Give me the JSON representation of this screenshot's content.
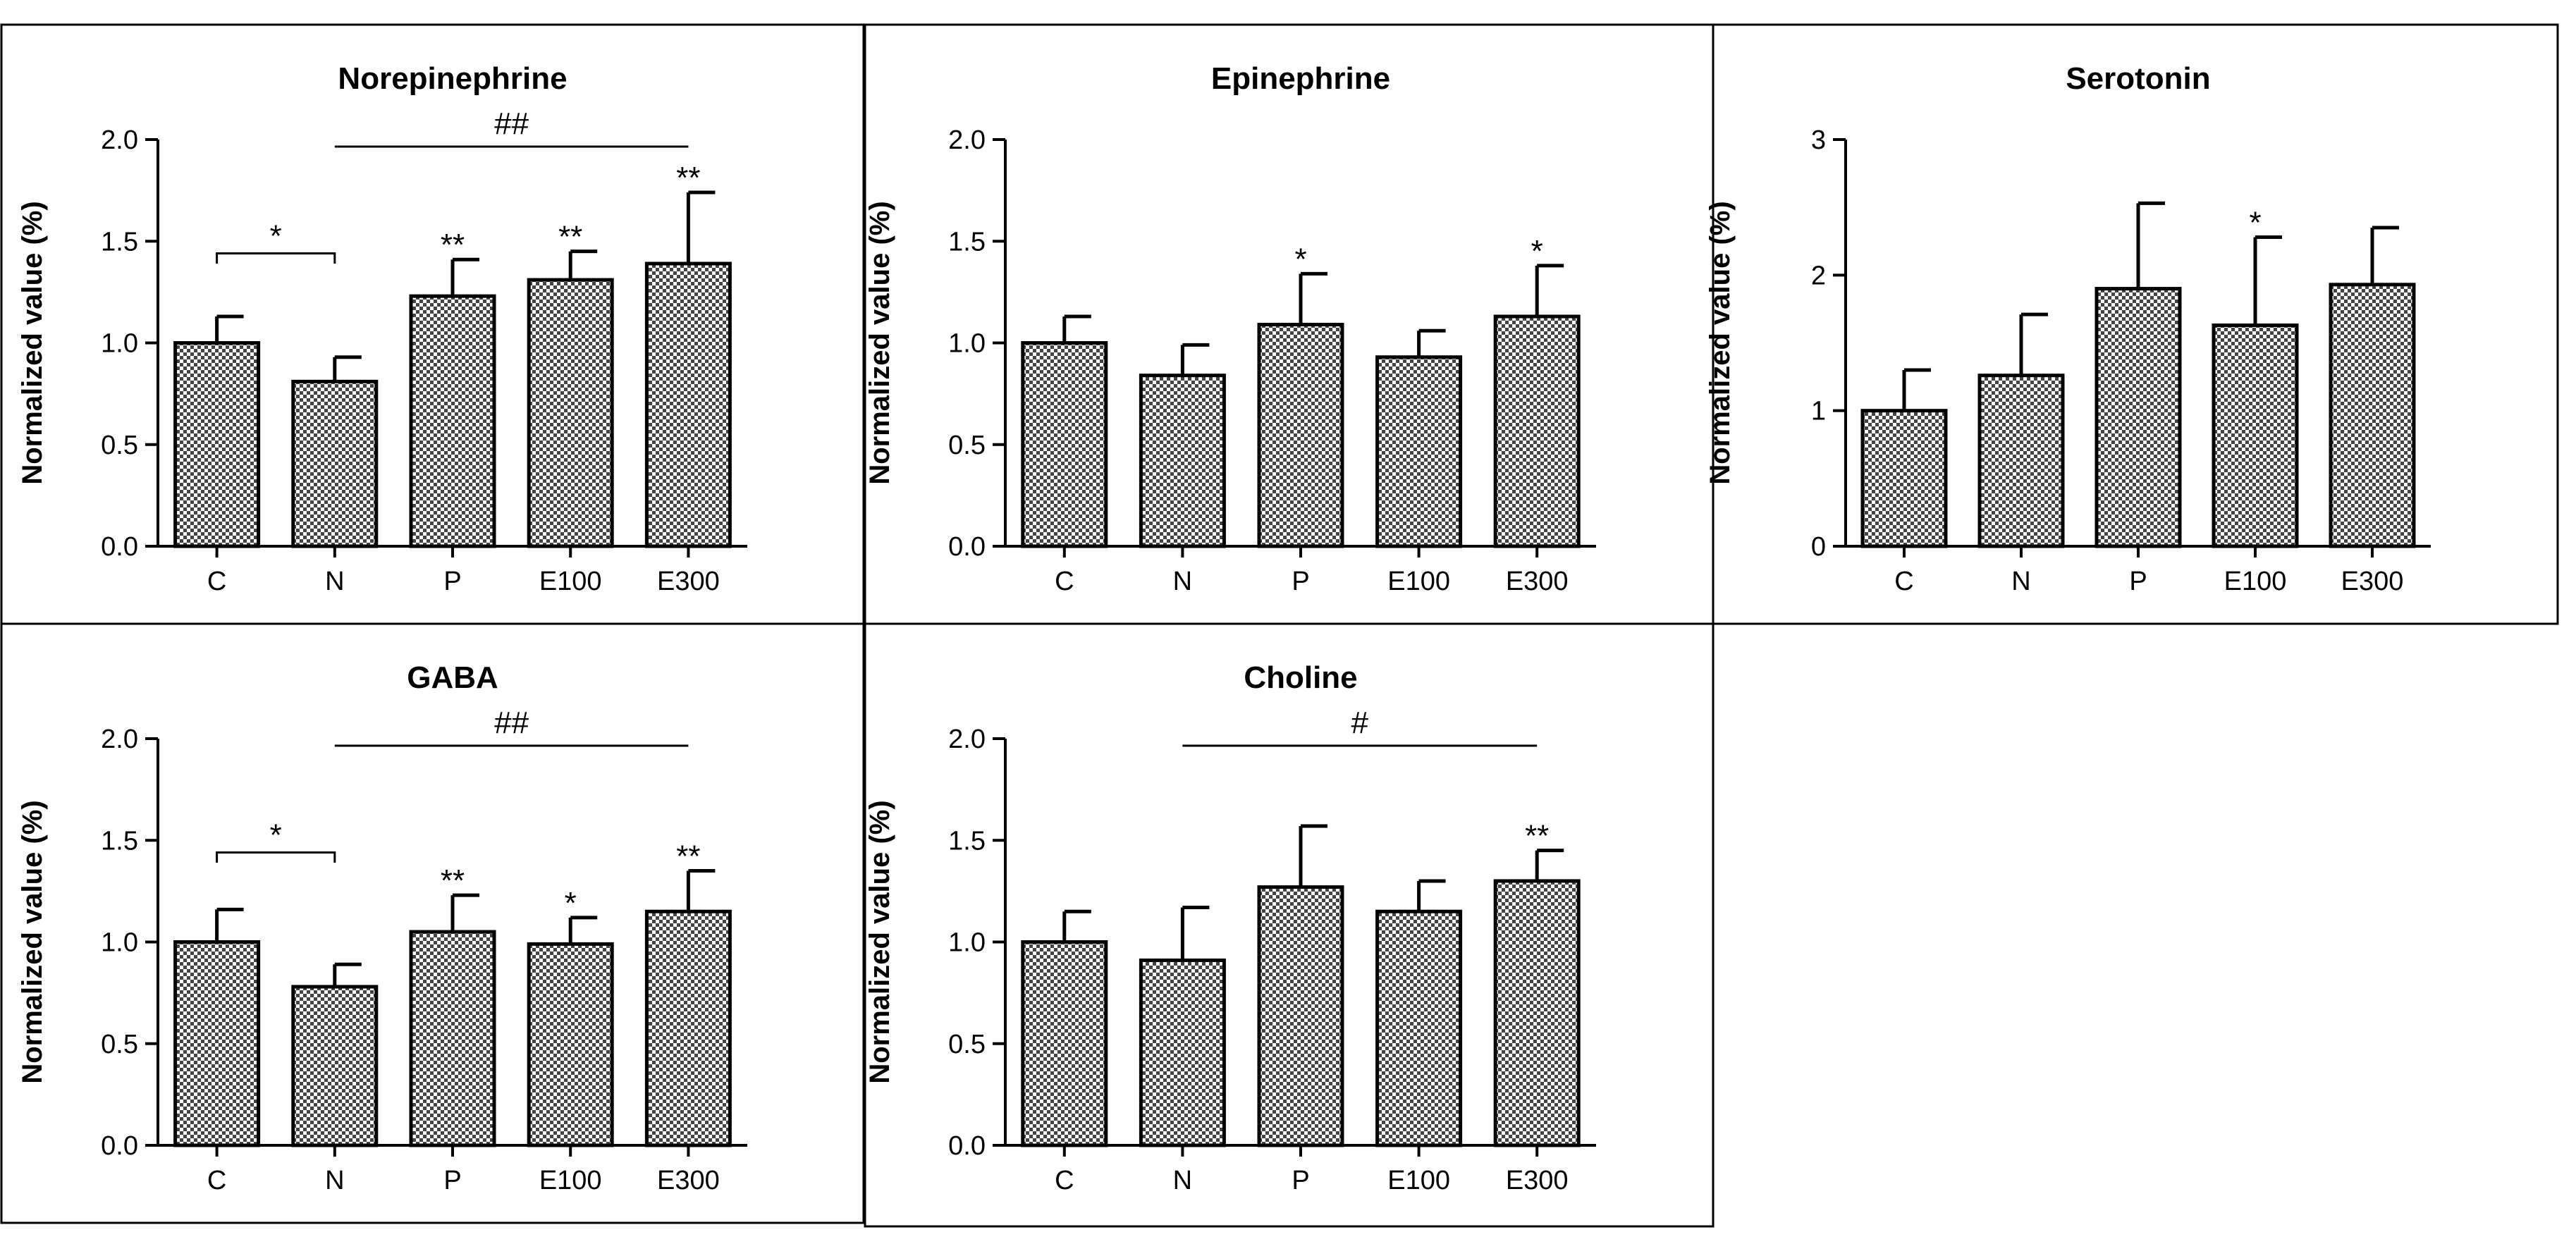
{
  "chart_data": [
    {
      "type": "bar",
      "title": "Norepinephrine",
      "ylabel": "Normalized value (%)",
      "xlabel": "",
      "categories": [
        "C",
        "N",
        "P",
        "E100",
        "E300"
      ],
      "values": [
        1.0,
        0.81,
        1.23,
        1.31,
        1.39
      ],
      "errors": [
        0.13,
        0.12,
        0.18,
        0.14,
        0.35
      ],
      "ylim": [
        0,
        2.0
      ],
      "yticks": [
        0.0,
        0.5,
        1.0,
        1.5,
        2.0
      ],
      "ytick_labels": [
        "0.0",
        "0.5",
        "1.0",
        "1.5",
        "2.0"
      ],
      "bar_labels": [
        "",
        "",
        "**",
        "**",
        "**"
      ],
      "brackets": [
        {
          "style": "bracket",
          "from": 0,
          "to": 1,
          "label": "*"
        },
        {
          "style": "line",
          "from": 1,
          "to": 4,
          "label": "##"
        }
      ]
    },
    {
      "type": "bar",
      "title": "Epinephrine",
      "ylabel": "Normalized value (%)",
      "xlabel": "",
      "categories": [
        "C",
        "N",
        "P",
        "E100",
        "E300"
      ],
      "values": [
        1.0,
        0.84,
        1.09,
        0.93,
        1.13
      ],
      "errors": [
        0.13,
        0.15,
        0.25,
        0.13,
        0.25
      ],
      "ylim": [
        0,
        2.0
      ],
      "yticks": [
        0.0,
        0.5,
        1.0,
        1.5,
        2.0
      ],
      "ytick_labels": [
        "0.0",
        "0.5",
        "1.0",
        "1.5",
        "2.0"
      ],
      "bar_labels": [
        "",
        "",
        "*",
        "",
        "*"
      ],
      "brackets": []
    },
    {
      "type": "bar",
      "title": "Serotonin",
      "ylabel": "Normalized value (%)",
      "xlabel": "",
      "categories": [
        "C",
        "N",
        "P",
        "E100",
        "E300"
      ],
      "values": [
        1.0,
        1.26,
        1.9,
        1.63,
        1.93
      ],
      "errors": [
        0.3,
        0.45,
        0.63,
        0.65,
        0.42
      ],
      "ylim": [
        0,
        3
      ],
      "yticks": [
        0,
        1,
        2,
        3
      ],
      "ytick_labels": [
        "0",
        "1",
        "2",
        "3"
      ],
      "bar_labels": [
        "",
        "",
        "",
        "*",
        ""
      ],
      "brackets": []
    },
    {
      "type": "bar",
      "title": "GABA",
      "ylabel": "Normalized value (%)",
      "xlabel": "",
      "categories": [
        "C",
        "N",
        "P",
        "E100",
        "E300"
      ],
      "values": [
        1.0,
        0.78,
        1.05,
        0.99,
        1.15
      ],
      "errors": [
        0.16,
        0.11,
        0.18,
        0.13,
        0.2
      ],
      "ylim": [
        0,
        2.0
      ],
      "yticks": [
        0.0,
        0.5,
        1.0,
        1.5,
        2.0
      ],
      "ytick_labels": [
        "0.0",
        "0.5",
        "1.0",
        "1.5",
        "2.0"
      ],
      "bar_labels": [
        "",
        "",
        "**",
        "*",
        "**"
      ],
      "brackets": [
        {
          "style": "bracket",
          "from": 0,
          "to": 1,
          "label": "*"
        },
        {
          "style": "line",
          "from": 1,
          "to": 4,
          "label": "##"
        }
      ]
    },
    {
      "type": "bar",
      "title": "Choline",
      "ylabel": "Normalized value (%)",
      "xlabel": "",
      "categories": [
        "C",
        "N",
        "P",
        "E100",
        "E300"
      ],
      "values": [
        1.0,
        0.91,
        1.27,
        1.15,
        1.3
      ],
      "errors": [
        0.15,
        0.26,
        0.3,
        0.15,
        0.15
      ],
      "ylim": [
        0,
        2.0
      ],
      "yticks": [
        0.0,
        0.5,
        1.0,
        1.5,
        2.0
      ],
      "ytick_labels": [
        "0.0",
        "0.5",
        "1.0",
        "1.5",
        "2.0"
      ],
      "bar_labels": [
        "",
        "",
        "",
        "",
        "**"
      ],
      "brackets": [
        {
          "style": "line",
          "from": 1,
          "to": 4,
          "label": "#"
        }
      ]
    }
  ]
}
